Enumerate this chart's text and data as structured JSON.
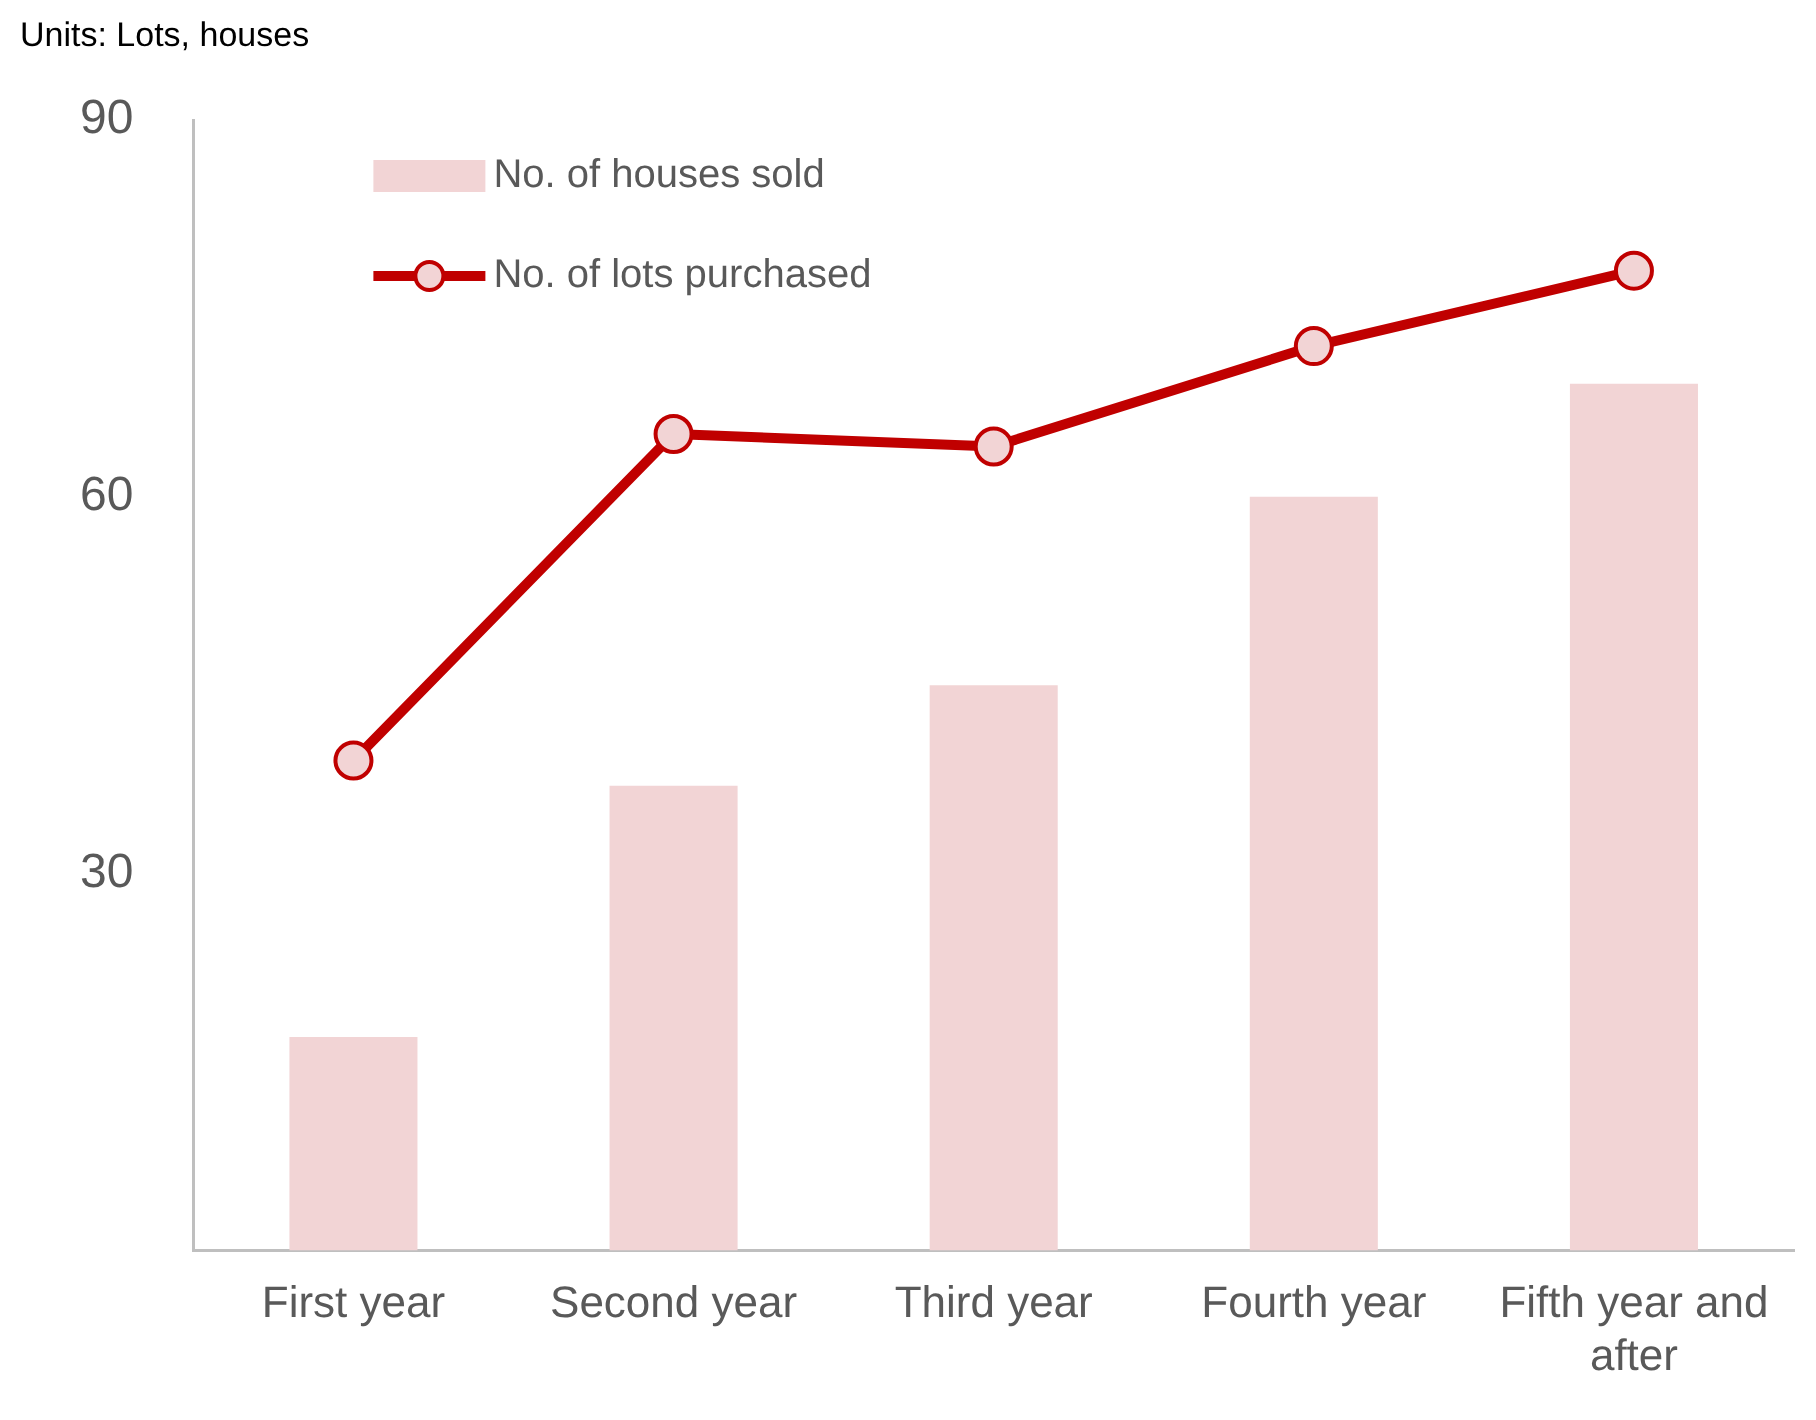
{
  "chart_data": {
    "type": "bar",
    "annotations": [
      "Units: Lots, houses"
    ],
    "categories": [
      "First year",
      "Second year",
      "Third year",
      "Fourth year",
      "Fifth year and after"
    ],
    "series": [
      {
        "name": "No. of houses sold",
        "color": "#f2d4d5",
        "values": [
          17,
          37,
          45,
          60,
          69
        ]
      },
      {
        "name": "No. of lots purchased",
        "type": "line",
        "color": "#c00000",
        "values": [
          39,
          65,
          64,
          72,
          78
        ]
      }
    ],
    "ylim": [
      0,
      90
    ],
    "yticks": [
      30,
      60,
      90
    ],
    "grid": false,
    "legend": "top left",
    "marker": "circle",
    "line_style": "solid"
  }
}
